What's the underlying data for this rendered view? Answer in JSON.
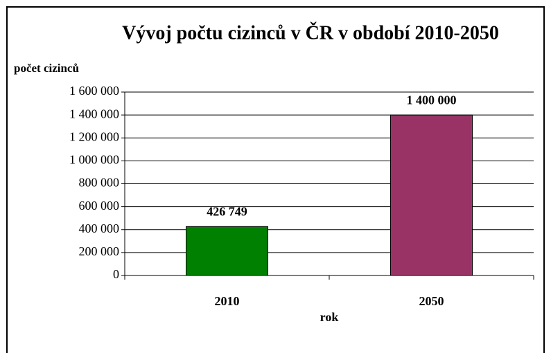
{
  "chart_data": {
    "type": "bar",
    "title": "Vývoj počtu cizinců v ČR v období 2010-2050",
    "y_label": "počet cizinců",
    "x_label": "rok",
    "categories": [
      "2010",
      "2050"
    ],
    "values": [
      426749,
      1400000
    ],
    "value_labels": [
      "426 749",
      "1 400 000"
    ],
    "colors": [
      "#008000",
      "#993366"
    ],
    "ylim": [
      0,
      1600000
    ],
    "yticks": [
      0,
      {
        "value": 200000,
        "label": "200 000"
      },
      {
        "value": 400000,
        "label": "400 000"
      },
      {
        "value": 600000,
        "label": "600 000"
      },
      {
        "value": 800000,
        "label": "800 000"
      },
      {
        "value": 1000000,
        "label": "1 000 000"
      },
      {
        "value": 1200000,
        "label": "1 200 000"
      },
      {
        "value": 1400000,
        "label": "1 400 000"
      },
      {
        "value": 1600000,
        "label": "1 600 000"
      }
    ],
    "grid": true
  }
}
